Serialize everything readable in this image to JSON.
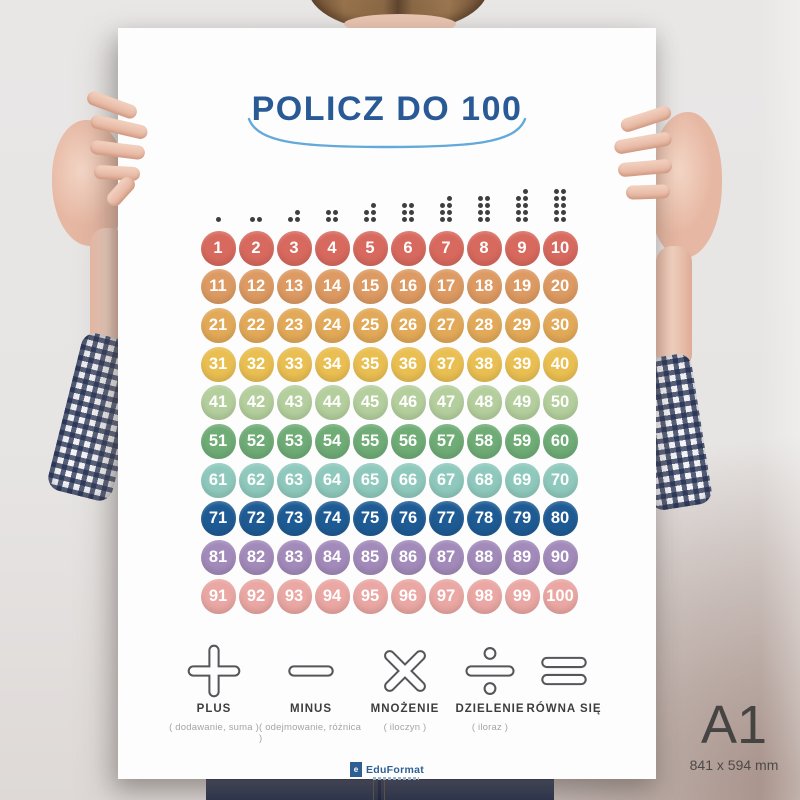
{
  "poster": {
    "title": "POLICZ DO 100",
    "colors": {
      "title": "#2a5a96",
      "underline": "#63a9da",
      "dot": "#3f3f41"
    },
    "counting_dots": {
      "groups": [
        1,
        2,
        3,
        4,
        5,
        6,
        7,
        8,
        9,
        10
      ]
    },
    "number_grid": {
      "number_color": "#ffffff",
      "rows": [
        {
          "color": "#d8695e",
          "numbers": [
            1,
            2,
            3,
            4,
            5,
            6,
            7,
            8,
            9,
            10
          ]
        },
        {
          "color": "#dd9a62",
          "numbers": [
            11,
            12,
            13,
            14,
            15,
            16,
            17,
            18,
            19,
            20
          ]
        },
        {
          "color": "#e2a958",
          "numbers": [
            21,
            22,
            23,
            24,
            25,
            26,
            27,
            28,
            29,
            30
          ]
        },
        {
          "color": "#eabf52",
          "numbers": [
            31,
            32,
            33,
            34,
            35,
            36,
            37,
            38,
            39,
            40
          ]
        },
        {
          "color": "#b4cf9d",
          "numbers": [
            41,
            42,
            43,
            44,
            45,
            46,
            47,
            48,
            49,
            50
          ]
        },
        {
          "color": "#6fac76",
          "numbers": [
            51,
            52,
            53,
            54,
            55,
            56,
            57,
            58,
            59,
            60
          ]
        },
        {
          "color": "#8fc9bd",
          "numbers": [
            61,
            62,
            63,
            64,
            65,
            66,
            67,
            68,
            69,
            70
          ]
        },
        {
          "color": "#1e5b94",
          "numbers": [
            71,
            72,
            73,
            74,
            75,
            76,
            77,
            78,
            79,
            80
          ]
        },
        {
          "color": "#a28aba",
          "numbers": [
            81,
            82,
            83,
            84,
            85,
            86,
            87,
            88,
            89,
            90
          ]
        },
        {
          "color": "#eaa7a3",
          "numbers": [
            91,
            92,
            93,
            94,
            95,
            96,
            97,
            98,
            99,
            100
          ]
        }
      ]
    },
    "operations": [
      {
        "id": "plus",
        "label": "PLUS",
        "sublabel": "( dodawanie, suma )"
      },
      {
        "id": "minus",
        "label": "MINUS",
        "sublabel": "( odejmowanie, różnica )"
      },
      {
        "id": "multiply",
        "label": "MNOŻENIE",
        "sublabel": "( iloczyn )"
      },
      {
        "id": "divide",
        "label": "DZIELENIE",
        "sublabel": "( iloraz )"
      },
      {
        "id": "equals",
        "label": "RÓWNA SIĘ",
        "sublabel": ""
      }
    ],
    "logo": {
      "text": "EduFormat"
    }
  },
  "size_badge": {
    "label": "A1",
    "dimensions": "841 x 594 mm"
  }
}
